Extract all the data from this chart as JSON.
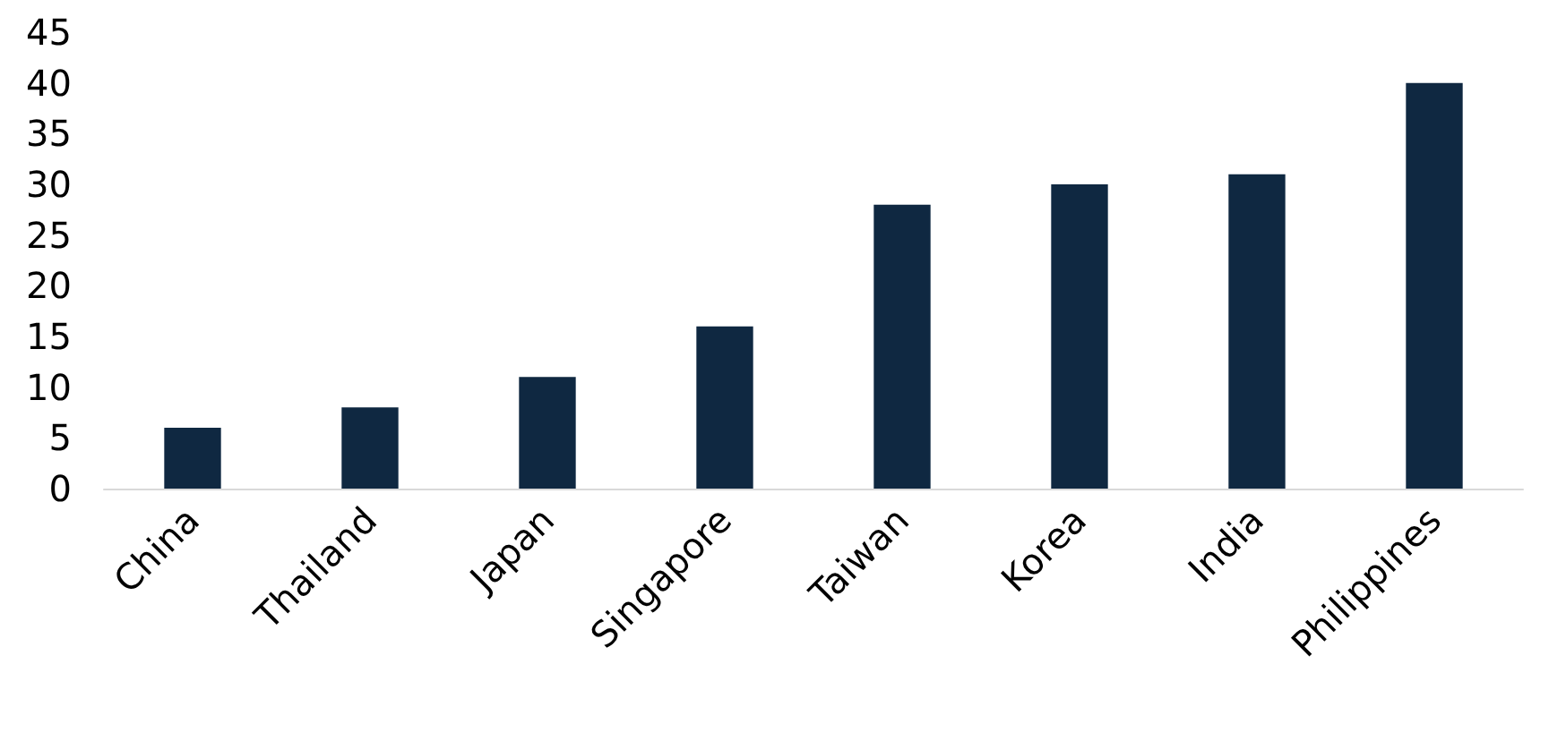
{
  "chart_data": {
    "type": "bar",
    "categories": [
      "China",
      "Thailand",
      "Japan",
      "Singapore",
      "Taiwan",
      "Korea",
      "India",
      "Philippines"
    ],
    "values": [
      6,
      8,
      11,
      16,
      28,
      30,
      31,
      40
    ],
    "color": "#0f2841",
    "ylim": [
      0,
      45
    ],
    "yticks": [
      0,
      5,
      10,
      15,
      20,
      25,
      30,
      35,
      40,
      45
    ],
    "grid": false
  }
}
